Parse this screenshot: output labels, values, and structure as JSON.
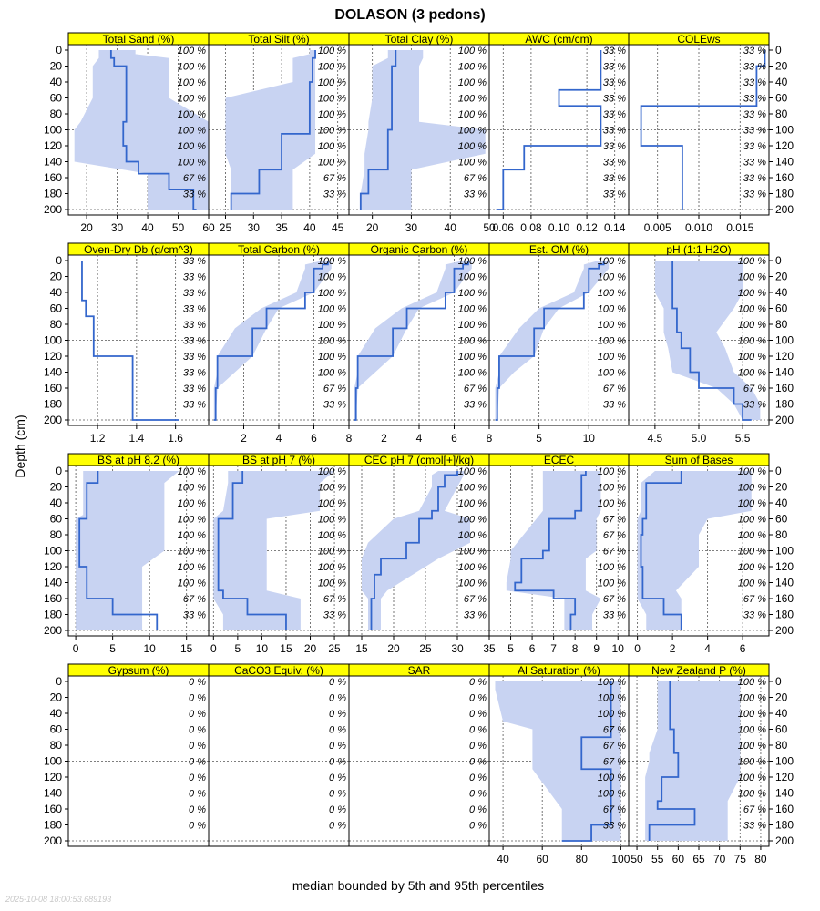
{
  "figure": {
    "title": "DOLASON (3 pedons)",
    "ylabel": "Depth (cm)",
    "xlabel": "median bounded by 5th and 95th percentiles",
    "timestamp": "2025-10-08 18:00:53.689193",
    "colors": {
      "strip": "#ffff00",
      "median_line": "#3366cc",
      "band": "#c8d3f2",
      "panel_border": "#000000",
      "grid": "#555555"
    }
  },
  "chart_data": [
    {
      "type": "line",
      "title": "Total Sand (%)",
      "ylim": [
        0,
        200
      ],
      "xlim": [
        14,
        60
      ],
      "xticks": [
        "20",
        "30",
        "40",
        "50",
        "60"
      ],
      "depth": [
        0,
        5,
        10,
        20,
        40,
        60,
        90,
        100,
        120,
        140,
        155,
        175,
        200
      ],
      "median": [
        28,
        28,
        29,
        33,
        33,
        33,
        32,
        32,
        33,
        37,
        47,
        55,
        56
      ],
      "low": [
        24,
        24,
        24,
        22,
        22,
        22,
        18,
        16,
        16,
        16,
        40,
        40,
        40
      ],
      "high": [
        36,
        36,
        47,
        47,
        47,
        47,
        60,
        60,
        60,
        60,
        60,
        60,
        60
      ],
      "pct": [
        "100 %",
        "100 %",
        "100 %",
        "100 %",
        "100 %",
        "100 %",
        "100 %",
        "100 %",
        "67 %",
        "33 %"
      ]
    },
    {
      "type": "line",
      "title": "Total Silt (%)",
      "ylim": [
        0,
        200
      ],
      "xlim": [
        22,
        47
      ],
      "xticks": [
        "25",
        "30",
        "35",
        "40",
        "45"
      ],
      "depth": [
        0,
        5,
        10,
        20,
        40,
        60,
        90,
        100,
        105,
        130,
        150,
        180,
        200
      ],
      "median": [
        41,
        41,
        40.5,
        40.5,
        40,
        40,
        40,
        40,
        35,
        35,
        31,
        26,
        26
      ],
      "low": [
        40,
        40,
        37,
        37,
        37,
        25,
        25,
        25,
        25,
        25,
        26,
        26,
        26
      ],
      "high": [
        41,
        41,
        41,
        41,
        41,
        41,
        41,
        41,
        41,
        41,
        37,
        37,
        37
      ],
      "pct": [
        "100 %",
        "100 %",
        "100 %",
        "100 %",
        "100 %",
        "100 %",
        "100 %",
        "100 %",
        "67 %",
        "33 %"
      ]
    },
    {
      "type": "line",
      "title": "Total Clay (%)",
      "ylim": [
        0,
        200
      ],
      "xlim": [
        14,
        50
      ],
      "xticks": [
        "20",
        "30",
        "40",
        "50"
      ],
      "depth": [
        0,
        10,
        20,
        40,
        60,
        90,
        100,
        130,
        150,
        180,
        200
      ],
      "median": [
        26,
        26,
        25,
        25,
        25,
        25,
        24,
        24,
        19,
        17,
        17
      ],
      "low": [
        24,
        24,
        20,
        20,
        20,
        19,
        19,
        18,
        18,
        17,
        17
      ],
      "high": [
        33,
        33,
        32,
        32,
        32,
        32,
        49,
        49,
        30,
        30,
        30
      ],
      "pct": [
        "100 %",
        "100 %",
        "100 %",
        "100 %",
        "100 %",
        "100 %",
        "100 %",
        "100 %",
        "67 %",
        "33 %"
      ]
    },
    {
      "type": "line",
      "title": "AWC (cm/cm)",
      "ylim": [
        0,
        200
      ],
      "xlim": [
        0.05,
        0.15
      ],
      "xticks": [
        "0.06",
        "0.08",
        "0.10",
        "0.12",
        "0.14"
      ],
      "depth": [
        0,
        20,
        50,
        70,
        120,
        150,
        200
      ],
      "median": [
        0.13,
        0.13,
        0.1,
        0.13,
        0.075,
        0.06,
        0.055
      ],
      "low": [
        0.13,
        0.13,
        0.1,
        0.13,
        0.075,
        0.06,
        0.055
      ],
      "high": [
        0.13,
        0.13,
        0.1,
        0.13,
        0.075,
        0.06,
        0.055
      ],
      "pct": [
        "33 %",
        "33 %",
        "33 %",
        "33 %",
        "33 %",
        "33 %",
        "33 %",
        "33 %",
        "33 %",
        "33 %"
      ]
    },
    {
      "type": "line",
      "title": "COLEws",
      "ylim": [
        0,
        200
      ],
      "xlim": [
        0.0015,
        0.0185
      ],
      "xticks": [
        "0.005",
        "0.010",
        "0.015"
      ],
      "depth": [
        0,
        20,
        70,
        120,
        200
      ],
      "median": [
        0.018,
        0.017,
        0.003,
        0.008,
        0.008
      ],
      "low": [
        0.018,
        0.017,
        0.003,
        0.008,
        0.008
      ],
      "high": [
        0.018,
        0.017,
        0.003,
        0.008,
        0.008
      ],
      "pct": [
        "33 %",
        "33 %",
        "33 %",
        "33 %",
        "33 %",
        "33 %",
        "33 %",
        "33 %",
        "33 %",
        "33 %"
      ]
    },
    {
      "type": "line",
      "title": "Oven-Dry Db (g/cm^3)",
      "ylim": [
        0,
        200
      ],
      "xlim": [
        1.05,
        1.77
      ],
      "xticks": [
        "1.2",
        "1.4",
        "1.6"
      ],
      "depth": [
        0,
        50,
        70,
        120,
        200
      ],
      "median": [
        1.12,
        1.14,
        1.18,
        1.38,
        1.62
      ],
      "low": [
        1.12,
        1.14,
        1.18,
        1.38,
        1.62
      ],
      "high": [
        1.12,
        1.14,
        1.18,
        1.38,
        1.62
      ],
      "pct": [
        "33 %",
        "33 %",
        "33 %",
        "33 %",
        "33 %",
        "33 %",
        "33 %",
        "33 %",
        "33 %",
        "33 %"
      ]
    },
    {
      "type": "line",
      "title": "Total Carbon (%)",
      "ylim": [
        0,
        200
      ],
      "xlim": [
        0,
        8
      ],
      "xticks": [
        "2",
        "4",
        "6",
        "8"
      ],
      "depth": [
        0,
        5,
        10,
        40,
        60,
        85,
        120,
        140,
        160,
        200
      ],
      "median": [
        6.8,
        6.5,
        6.0,
        5.5,
        3.3,
        2.5,
        0.5,
        0.5,
        0.4,
        0.3
      ],
      "low": [
        6.5,
        5.5,
        5.5,
        5.0,
        3.0,
        1.5,
        0.5,
        0.5,
        0.3,
        0.3
      ],
      "high": [
        7.0,
        7.0,
        7.0,
        6.0,
        4.0,
        3.3,
        2.5,
        1.5,
        0.5,
        0.4
      ],
      "pct": [
        "100 %",
        "100 %",
        "100 %",
        "100 %",
        "100 %",
        "100 %",
        "100 %",
        "100 %",
        "67 %",
        "33 %"
      ]
    },
    {
      "type": "line",
      "title": "Organic Carbon (%)",
      "ylim": [
        0,
        200
      ],
      "xlim": [
        0,
        8
      ],
      "xticks": [
        "2",
        "4",
        "6",
        "8"
      ],
      "depth": [
        0,
        5,
        10,
        40,
        60,
        85,
        120,
        140,
        160,
        200
      ],
      "median": [
        6.8,
        6.5,
        6.0,
        5.5,
        3.3,
        2.5,
        0.5,
        0.5,
        0.4,
        0.3
      ],
      "low": [
        6.5,
        5.5,
        5.5,
        5.0,
        3.0,
        1.5,
        0.5,
        0.5,
        0.3,
        0.3
      ],
      "high": [
        7.0,
        7.0,
        7.0,
        6.0,
        4.0,
        3.3,
        2.5,
        1.5,
        0.5,
        0.4
      ],
      "pct": [
        "100 %",
        "100 %",
        "100 %",
        "100 %",
        "100 %",
        "100 %",
        "100 %",
        "100 %",
        "67 %",
        "33 %"
      ]
    },
    {
      "type": "line",
      "title": "Est. OM (%)",
      "ylim": [
        0,
        200
      ],
      "xlim": [
        0,
        14
      ],
      "xticks": [
        "5",
        "10"
      ],
      "depth": [
        0,
        5,
        10,
        40,
        60,
        85,
        120,
        140,
        160,
        200
      ],
      "median": [
        11.5,
        11.0,
        10.0,
        9.5,
        5.5,
        4.5,
        1.0,
        1.0,
        0.8,
        0.6
      ],
      "low": [
        11.0,
        9.5,
        9.5,
        8.5,
        5.0,
        3.0,
        1.0,
        1.0,
        0.6,
        0.6
      ],
      "high": [
        12.0,
        12.0,
        12.0,
        10.0,
        7.0,
        5.5,
        4.5,
        2.5,
        1.0,
        0.8
      ],
      "pct": [
        "100 %",
        "100 %",
        "100 %",
        "100 %",
        "100 %",
        "100 %",
        "100 %",
        "100 %",
        "67 %",
        "33 %"
      ]
    },
    {
      "type": "line",
      "title": "pH (1:1 H2O)",
      "ylim": [
        0,
        200
      ],
      "xlim": [
        4.2,
        5.8
      ],
      "xticks": [
        "4.5",
        "5.0",
        "5.5"
      ],
      "depth": [
        0,
        10,
        40,
        60,
        90,
        110,
        140,
        160,
        180,
        200
      ],
      "median": [
        4.7,
        4.7,
        4.7,
        4.75,
        4.8,
        4.9,
        5.0,
        5.4,
        5.5,
        5.6
      ],
      "low": [
        4.5,
        4.5,
        4.5,
        4.6,
        4.6,
        4.65,
        4.7,
        5.2,
        5.4,
        5.5
      ],
      "high": [
        5.5,
        5.5,
        5.5,
        5.4,
        5.2,
        5.3,
        5.4,
        5.6,
        5.7,
        5.7
      ],
      "pct": [
        "100 %",
        "100 %",
        "100 %",
        "100 %",
        "100 %",
        "100 %",
        "100 %",
        "100 %",
        "67 %",
        "33 %"
      ]
    },
    {
      "type": "line",
      "title": "BS at pH 8.2 (%)",
      "ylim": [
        0,
        200
      ],
      "xlim": [
        -1,
        18
      ],
      "xticks": [
        "0",
        "5",
        "10",
        "15"
      ],
      "depth": [
        0,
        15,
        55,
        60,
        80,
        100,
        120,
        150,
        160,
        180,
        200
      ],
      "median": [
        3,
        1.5,
        1.5,
        0.5,
        0.5,
        0.5,
        1.5,
        1.5,
        5,
        11,
        11
      ],
      "low": [
        1,
        1,
        1,
        0,
        0,
        0,
        0,
        0,
        0,
        0,
        0
      ],
      "high": [
        14,
        12,
        12,
        12,
        12,
        12,
        9,
        9,
        9,
        9,
        9
      ],
      "pct": [
        "100 %",
        "100 %",
        "100 %",
        "100 %",
        "100 %",
        "100 %",
        "100 %",
        "100 %",
        "67 %",
        "33 %"
      ]
    },
    {
      "type": "line",
      "title": "BS at pH 7 (%)",
      "ylim": [
        0,
        200
      ],
      "xlim": [
        -1,
        28
      ],
      "xticks": [
        "0",
        "5",
        "10",
        "15",
        "20",
        "25"
      ],
      "depth": [
        0,
        15,
        50,
        60,
        80,
        100,
        120,
        150,
        160,
        180,
        200
      ],
      "median": [
        6,
        4,
        4,
        1,
        1,
        1,
        1,
        2,
        7,
        15,
        15
      ],
      "low": [
        3,
        3,
        2,
        0,
        0,
        0,
        0,
        0,
        0,
        2,
        2
      ],
      "high": [
        25,
        22,
        22,
        11,
        11,
        11,
        11,
        11,
        18,
        18,
        18
      ],
      "pct": [
        "100 %",
        "100 %",
        "100 %",
        "100 %",
        "100 %",
        "100 %",
        "100 %",
        "100 %",
        "67 %",
        "33 %"
      ]
    },
    {
      "type": "line",
      "title": "CEC pH 7 (cmol[+]/kg)",
      "ylim": [
        0,
        200
      ],
      "xlim": [
        13,
        35
      ],
      "xticks": [
        "15",
        "20",
        "25",
        "30",
        "35"
      ],
      "depth": [
        0,
        5,
        20,
        50,
        60,
        90,
        110,
        130,
        150,
        160,
        200
      ],
      "median": [
        30,
        28,
        27,
        26,
        24,
        22,
        18,
        17,
        17,
        16.5,
        16.5
      ],
      "low": [
        27,
        26,
        26,
        24,
        20,
        16,
        15,
        15,
        15,
        16,
        16
      ],
      "high": [
        31,
        31,
        30,
        28,
        32,
        32,
        27,
        23,
        19,
        18,
        18
      ],
      "pct": [
        "100 %",
        "100 %",
        "100 %",
        "100 %",
        "100 %",
        "100 %",
        "100 %",
        "100 %",
        "67 %",
        "33 %"
      ]
    },
    {
      "type": "line",
      "title": "ECEC",
      "ylim": [
        0,
        200
      ],
      "xlim": [
        4,
        10.5
      ],
      "xticks": [
        "5",
        "6",
        "7",
        "8",
        "9",
        "10"
      ],
      "depth": [
        0,
        5,
        50,
        60,
        100,
        110,
        140,
        150,
        160,
        180,
        200
      ],
      "median": [
        8.5,
        8.3,
        8.0,
        6.8,
        6.5,
        5.5,
        5.2,
        7.0,
        8.0,
        7.8,
        7.8
      ],
      "low": [
        6.5,
        6.5,
        6.5,
        6.2,
        5.0,
        5.0,
        4.8,
        4.8,
        7.5,
        7.5,
        7.5
      ],
      "high": [
        9.2,
        9.2,
        9.2,
        9.0,
        9.0,
        8.5,
        8.5,
        8.5,
        9.2,
        8.8,
        8.8
      ],
      "pct": [
        "100 %",
        "100 %",
        "100 %",
        "67 %",
        "67 %",
        "67 %",
        "100 %",
        "100 %",
        "67 %",
        "33 %"
      ]
    },
    {
      "type": "line",
      "title": "Sum of Bases",
      "ylim": [
        0,
        200
      ],
      "xlim": [
        -0.5,
        7.5
      ],
      "xticks": [
        "0",
        "2",
        "4",
        "6"
      ],
      "depth": [
        0,
        15,
        50,
        60,
        80,
        100,
        120,
        150,
        160,
        180,
        200
      ],
      "median": [
        2.5,
        0.5,
        0.5,
        0.3,
        0.2,
        0.2,
        0.3,
        0.3,
        1.5,
        2.5,
        2.5
      ],
      "low": [
        1.0,
        0.2,
        0.2,
        0,
        0,
        0,
        0,
        0,
        0,
        0.5,
        0.5
      ],
      "high": [
        6.5,
        6.5,
        6.5,
        4.0,
        3.5,
        3.5,
        3.5,
        2.2,
        2.5,
        2.5,
        2.5
      ],
      "pct": [
        "100 %",
        "100 %",
        "100 %",
        "100 %",
        "100 %",
        "100 %",
        "100 %",
        "100 %",
        "67 %",
        "33 %"
      ]
    },
    {
      "type": "line",
      "title": "Gypsum (%)",
      "ylim": [
        0,
        200
      ],
      "xlim": [
        0,
        1
      ],
      "xticks": [],
      "depth": [],
      "median": [],
      "low": [],
      "high": [],
      "pct": [
        "0 %",
        "0 %",
        "0 %",
        "0 %",
        "0 %",
        "0 %",
        "0 %",
        "0 %",
        "0 %",
        "0 %"
      ]
    },
    {
      "type": "line",
      "title": "CaCO3 Equiv. (%)",
      "ylim": [
        0,
        200
      ],
      "xlim": [
        0,
        1
      ],
      "xticks": [],
      "depth": [],
      "median": [],
      "low": [],
      "high": [],
      "pct": [
        "0 %",
        "0 %",
        "0 %",
        "0 %",
        "0 %",
        "0 %",
        "0 %",
        "0 %",
        "0 %",
        "0 %"
      ]
    },
    {
      "type": "line",
      "title": "SAR",
      "ylim": [
        0,
        200
      ],
      "xlim": [
        0,
        1
      ],
      "xticks": [],
      "depth": [],
      "median": [],
      "low": [],
      "high": [],
      "pct": [
        "0 %",
        "0 %",
        "0 %",
        "0 %",
        "0 %",
        "0 %",
        "0 %",
        "0 %",
        "0 %",
        "0 %"
      ]
    },
    {
      "type": "line",
      "title": "Al Saturation (%)",
      "ylim": [
        0,
        200
      ],
      "xlim": [
        33,
        104
      ],
      "xticks": [
        "40",
        "60",
        "80",
        "100"
      ],
      "depth": [
        0,
        10,
        50,
        60,
        70,
        100,
        110,
        160,
        180,
        200
      ],
      "median": [
        95,
        95,
        95,
        95,
        80,
        80,
        95,
        95,
        85,
        70
      ],
      "low": [
        36,
        36,
        40,
        55,
        55,
        55,
        55,
        70,
        70,
        70
      ],
      "high": [
        100,
        100,
        100,
        100,
        100,
        100,
        100,
        100,
        100,
        100
      ],
      "pct": [
        "100 %",
        "100 %",
        "100 %",
        "67 %",
        "67 %",
        "67 %",
        "100 %",
        "100 %",
        "67 %",
        "33 %"
      ]
    },
    {
      "type": "line",
      "title": "New Zealand P (%)",
      "ylim": [
        0,
        200
      ],
      "xlim": [
        48,
        82
      ],
      "xticks": [
        "50",
        "55",
        "60",
        "65",
        "70",
        "75",
        "80"
      ],
      "depth": [
        0,
        10,
        50,
        60,
        90,
        100,
        120,
        150,
        160,
        180,
        200
      ],
      "median": [
        58,
        58,
        58,
        59,
        60,
        60,
        56,
        55,
        64,
        53,
        53
      ],
      "low": [
        55,
        55,
        55,
        55,
        53,
        53,
        52,
        52,
        52,
        52,
        52
      ],
      "high": [
        75,
        75,
        75,
        75,
        75,
        75,
        75,
        72,
        72,
        72,
        72
      ],
      "pct": [
        "100 %",
        "100 %",
        "100 %",
        "100 %",
        "100 %",
        "100 %",
        "100 %",
        "100 %",
        "67 %",
        "33 %"
      ]
    }
  ]
}
